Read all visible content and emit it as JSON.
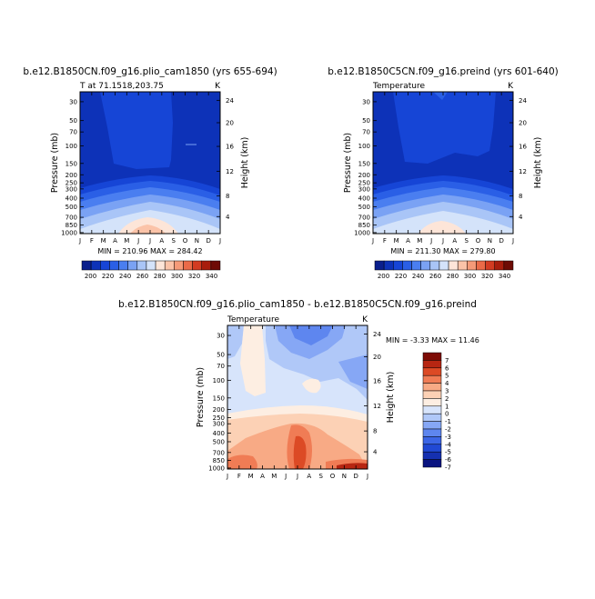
{
  "colors": {
    "palette_abs": [
      "#0a1f8c",
      "#0d32b8",
      "#1645d6",
      "#2a5fe6",
      "#4a7ef0",
      "#7aa2f4",
      "#a9c5f7",
      "#d4e3fa",
      "#fde5d8",
      "#fbc3a8",
      "#f59a78",
      "#ea6a48",
      "#d23b22",
      "#a81d0d",
      "#6e0b05"
    ],
    "palette_diff": [
      "#0a1480",
      "#1530b0",
      "#2149d4",
      "#3c66e6",
      "#5e86ef",
      "#86a7f5",
      "#b0c8f8",
      "#d7e4fb",
      "#fdeee2",
      "#fcd1b5",
      "#f8aa85",
      "#f07c55",
      "#dc4a25",
      "#b72612",
      "#7e0c06"
    ]
  },
  "chart_data": [
    {
      "type": "heatmap",
      "title": "b.e12.B1850CN.f09_g16.plio_cam1850 (yrs 655-694)",
      "left_label": "T at 71.1518,203.75",
      "right_label": "K",
      "ylabel": "Pressure (mb)",
      "y2label": "Height (km)",
      "x_ticks": [
        "J",
        "F",
        "M",
        "A",
        "M",
        "J",
        "J",
        "A",
        "S",
        "O",
        "N",
        "D",
        "J"
      ],
      "y_ticks": [
        "30",
        "50",
        "70",
        "100",
        "150",
        "200",
        "250",
        "300",
        "400",
        "500",
        "700",
        "850",
        "1000"
      ],
      "y2_ticks": [
        "24",
        "20",
        "16",
        "12",
        "8",
        "4"
      ],
      "stats": "MIN = 210.96 MAX = 284.42",
      "min": 210.96,
      "max": 284.42,
      "colorbar": {
        "labels": [
          "200",
          "220",
          "240",
          "260",
          "280",
          "300",
          "320",
          "340"
        ]
      }
    },
    {
      "type": "heatmap",
      "title": "b.e12.B1850C5CN.f09_g16.preind (yrs 601-640)",
      "left_label": "Temperature",
      "right_label": "K",
      "ylabel": "Pressure (mb)",
      "y2label": "Height (km)",
      "x_ticks": [
        "J",
        "F",
        "M",
        "A",
        "M",
        "J",
        "J",
        "A",
        "S",
        "O",
        "N",
        "D",
        "J"
      ],
      "y_ticks": [
        "30",
        "50",
        "70",
        "100",
        "150",
        "200",
        "250",
        "300",
        "400",
        "500",
        "700",
        "850",
        "1000"
      ],
      "y2_ticks": [
        "24",
        "20",
        "16",
        "12",
        "8",
        "4"
      ],
      "stats": "MIN = 211.30 MAX = 279.80",
      "min": 211.3,
      "max": 279.8,
      "colorbar": {
        "labels": [
          "200",
          "220",
          "240",
          "260",
          "280",
          "300",
          "320",
          "340"
        ]
      }
    },
    {
      "type": "heatmap",
      "title": "b.e12.B1850CN.f09_g16.plio_cam1850 - b.e12.B1850C5CN.f09_g16.preind",
      "left_label": "Temperature",
      "right_label": "K",
      "ylabel": "Pressure (mb)",
      "y2label": "Height (km)",
      "x_ticks": [
        "J",
        "F",
        "M",
        "A",
        "M",
        "J",
        "J",
        "A",
        "S",
        "O",
        "N",
        "D",
        "J"
      ],
      "y_ticks": [
        "30",
        "50",
        "70",
        "100",
        "150",
        "200",
        "250",
        "300",
        "400",
        "500",
        "700",
        "850",
        "1000"
      ],
      "y2_ticks": [
        "24",
        "20",
        "16",
        "12",
        "8",
        "4"
      ],
      "stats": "MIN = -3.33 MAX = 11.46",
      "min": -3.33,
      "max": 11.46,
      "colorbar": {
        "labels": [
          "7",
          "6",
          "5",
          "4",
          "3",
          "2",
          "1",
          "0",
          "-1",
          "-2",
          "-3",
          "-4",
          "-5",
          "-6",
          "-7"
        ]
      }
    }
  ]
}
